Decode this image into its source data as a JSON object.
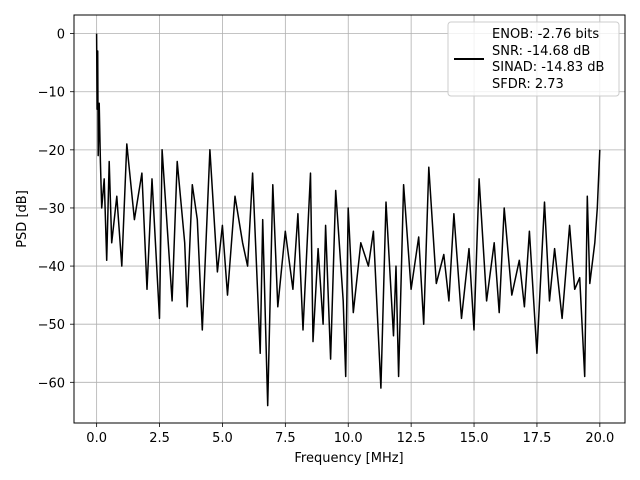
{
  "chart_data": {
    "type": "line",
    "title": "",
    "xlabel": "Frequency [MHz]",
    "ylabel": "PSD [dB]",
    "xlim": [
      -0.9,
      21.0
    ],
    "ylim": [
      -67,
      3.2
    ],
    "xticks": [
      0.0,
      2.5,
      5.0,
      7.5,
      10.0,
      12.5,
      15.0,
      17.5,
      20.0
    ],
    "xtick_labels": [
      "0.0",
      "2.5",
      "5.0",
      "7.5",
      "10.0",
      "12.5",
      "15.0",
      "17.5",
      "20.0"
    ],
    "yticks": [
      0,
      -10,
      -20,
      -30,
      -40,
      -50,
      -60
    ],
    "ytick_labels": [
      "0",
      "−10",
      "−20",
      "−30",
      "−40",
      "−50",
      "−60"
    ],
    "grid": true,
    "legend_position": "top-right",
    "series": [
      {
        "color": "#000000",
        "x": [
          0.0,
          0.02,
          0.04,
          0.06,
          0.1,
          0.15,
          0.2,
          0.3,
          0.4,
          0.5,
          0.6,
          0.8,
          1.0,
          1.2,
          1.5,
          1.8,
          2.0,
          2.2,
          2.5,
          2.6,
          2.8,
          3.0,
          3.2,
          3.5,
          3.6,
          3.8,
          4.0,
          4.2,
          4.5,
          4.8,
          5.0,
          5.2,
          5.5,
          5.8,
          6.0,
          6.2,
          6.5,
          6.6,
          6.8,
          7.0,
          7.2,
          7.5,
          7.8,
          8.0,
          8.2,
          8.5,
          8.6,
          8.8,
          9.0,
          9.1,
          9.3,
          9.5,
          9.8,
          9.9,
          10.0,
          10.2,
          10.5,
          10.8,
          11.0,
          11.3,
          11.5,
          11.8,
          11.9,
          12.0,
          12.2,
          12.5,
          12.8,
          13.0,
          13.2,
          13.5,
          13.8,
          14.0,
          14.2,
          14.5,
          14.8,
          15.0,
          15.2,
          15.5,
          15.8,
          16.0,
          16.2,
          16.5,
          16.8,
          17.0,
          17.2,
          17.5,
          17.8,
          18.0,
          18.2,
          18.5,
          18.8,
          19.0,
          19.2,
          19.4,
          19.5,
          19.6,
          19.8,
          19.9,
          20.0
        ],
        "y": [
          0.0,
          -13,
          -3,
          -21,
          -12,
          -22,
          -30,
          -25,
          -39,
          -22,
          -36,
          -28,
          -40,
          -19,
          -32,
          -24,
          -44,
          -25,
          -49,
          -20,
          -33,
          -46,
          -22,
          -36,
          -47,
          -26,
          -32,
          -51,
          -20,
          -41,
          -33,
          -45,
          -28,
          -36,
          -40,
          -24,
          -55,
          -32,
          -64,
          -26,
          -47,
          -34,
          -44,
          -31,
          -51,
          -24,
          -53,
          -37,
          -50,
          -33,
          -56,
          -27,
          -46,
          -59,
          -30,
          -48,
          -36,
          -40,
          -34,
          -61,
          -29,
          -52,
          -40,
          -59,
          -26,
          -44,
          -35,
          -50,
          -23,
          -43,
          -38,
          -46,
          -31,
          -49,
          -37,
          -51,
          -25,
          -46,
          -36,
          -48,
          -30,
          -45,
          -39,
          -47,
          -34,
          -55,
          -29,
          -46,
          -37,
          -49,
          -33,
          -44,
          -42,
          -59,
          -28,
          -43,
          -36,
          -30,
          -20
        ]
      }
    ],
    "legend": {
      "entries": [
        "ENOB: -2.76 bits",
        "SNR: -14.68 dB",
        "SINAD: -14.83 dB",
        "SFDR: 2.73"
      ]
    }
  }
}
